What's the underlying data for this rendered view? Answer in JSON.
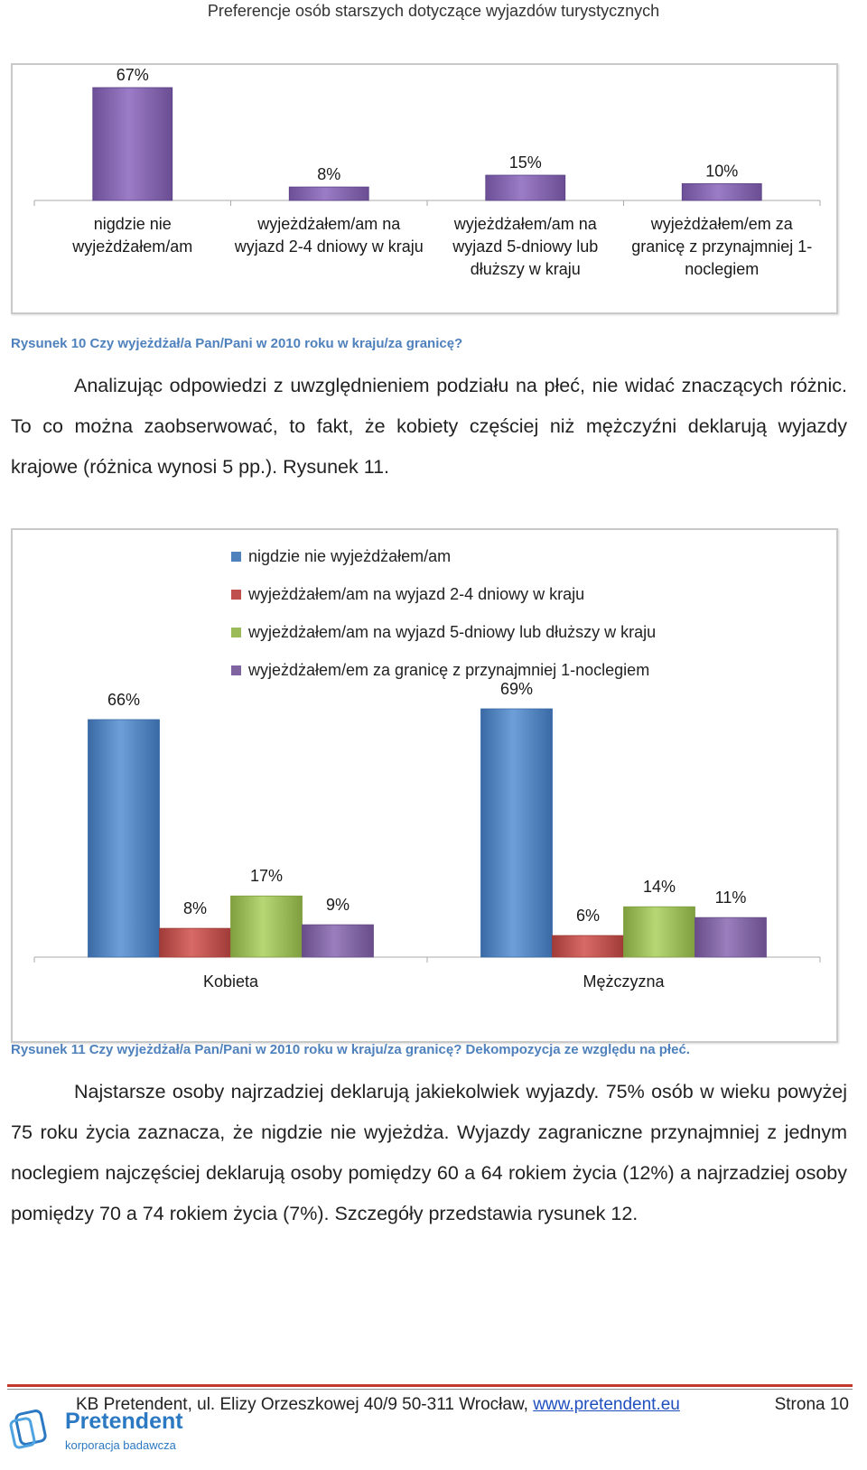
{
  "header": {
    "title": "Preferencje osób starszych dotyczące wyjazdów turystycznych"
  },
  "figure10": {
    "caption": "Rysunek 10 Czy wyjeżdżał/a Pan/Pani w 2010 roku w kraju/za granicę?",
    "chart_data": {
      "type": "bar",
      "categories": [
        "nigdzie nie wyjeżdżałem/am",
        "wyjeżdżałem/am na wyjazd 2-4 dniowy w kraju",
        "wyjeżdżałem/am na wyjazd 5-dniowy lub dłuższy w kraju",
        "wyjeżdżałem/em za granicę z przynajmniej 1-noclegiem"
      ],
      "category_lines": [
        [
          "nigdzie nie",
          "wyjeżdżałem/am"
        ],
        [
          "wyjeżdżałem/am na",
          "wyjazd 2-4 dniowy w kraju"
        ],
        [
          "wyjeżdżałem/am na",
          "wyjazd 5-dniowy lub",
          "dłuższy w kraju"
        ],
        [
          "wyjeżdżałem/em za",
          "granicę z przynajmniej 1-",
          "noclegiem"
        ]
      ],
      "values": [
        67,
        8,
        15,
        10
      ],
      "labels": [
        "67%",
        "8%",
        "15%",
        "10%"
      ],
      "color": "#8064a2",
      "grid": false
    }
  },
  "paragraph1": "Analizując odpowiedzi z uwzględnieniem podziału na płeć, nie widać znaczących różnic. To co można zaobserwować, to fakt, że kobiety częściej niż mężczyźni deklarują wyjazdy krajowe (różnica wynosi 5 pp.). Rysunek 11.",
  "figure11": {
    "caption": "Rysunek 11 Czy wyjeżdżał/a Pan/Pani w 2010 roku w kraju/za granicę? Dekompozycja ze względu na płeć.",
    "chart_data": {
      "type": "bar",
      "categories": [
        "Kobieta",
        "Mężczyzna"
      ],
      "legend_position": "top",
      "series": [
        {
          "name": "nigdzie nie wyjeżdżałem/am",
          "values": [
            66,
            69
          ],
          "labels": [
            "66%",
            "69%"
          ],
          "color": "#4f81bd"
        },
        {
          "name": "wyjeżdżałem/am na wyjazd 2-4 dniowy w kraju",
          "values": [
            8,
            6
          ],
          "labels": [
            "8%",
            "6%"
          ],
          "color": "#c0504d"
        },
        {
          "name": "wyjeżdżałem/am na wyjazd 5-dniowy lub dłuższy w kraju",
          "values": [
            17,
            14
          ],
          "labels": [
            "17%",
            "14%"
          ],
          "color": "#9bbb59"
        },
        {
          "name": "wyjeżdżałem/em za granicę z przynajmniej 1-noclegiem",
          "values": [
            9,
            11
          ],
          "labels": [
            "9%",
            "11%"
          ],
          "color": "#8064a2"
        }
      ],
      "grid": false
    }
  },
  "paragraph2": "Najstarsze osoby najrzadziej deklarują jakiekolwiek wyjazdy. 75% osób w wieku powyżej 75 roku życia zaznacza, że nigdzie nie wyjeżdża. Wyjazdy zagraniczne przynajmniej z jednym noclegiem najczęściej deklarują osoby pomiędzy 60 a 64 rokiem życia (12%) a najrzadziej osoby pomiędzy 70 a 74 rokiem życia (7%). Szczegóły przedstawia rysunek 12.",
  "footer": {
    "address": "KB Pretendent, ul. Elizy Orzeszkowej 40/9 50-311 Wrocław, ",
    "link": "www.pretendent.eu",
    "page": "Strona 10",
    "logo_name": "Pretendent",
    "logo_sub": "korporacja badawcza"
  }
}
